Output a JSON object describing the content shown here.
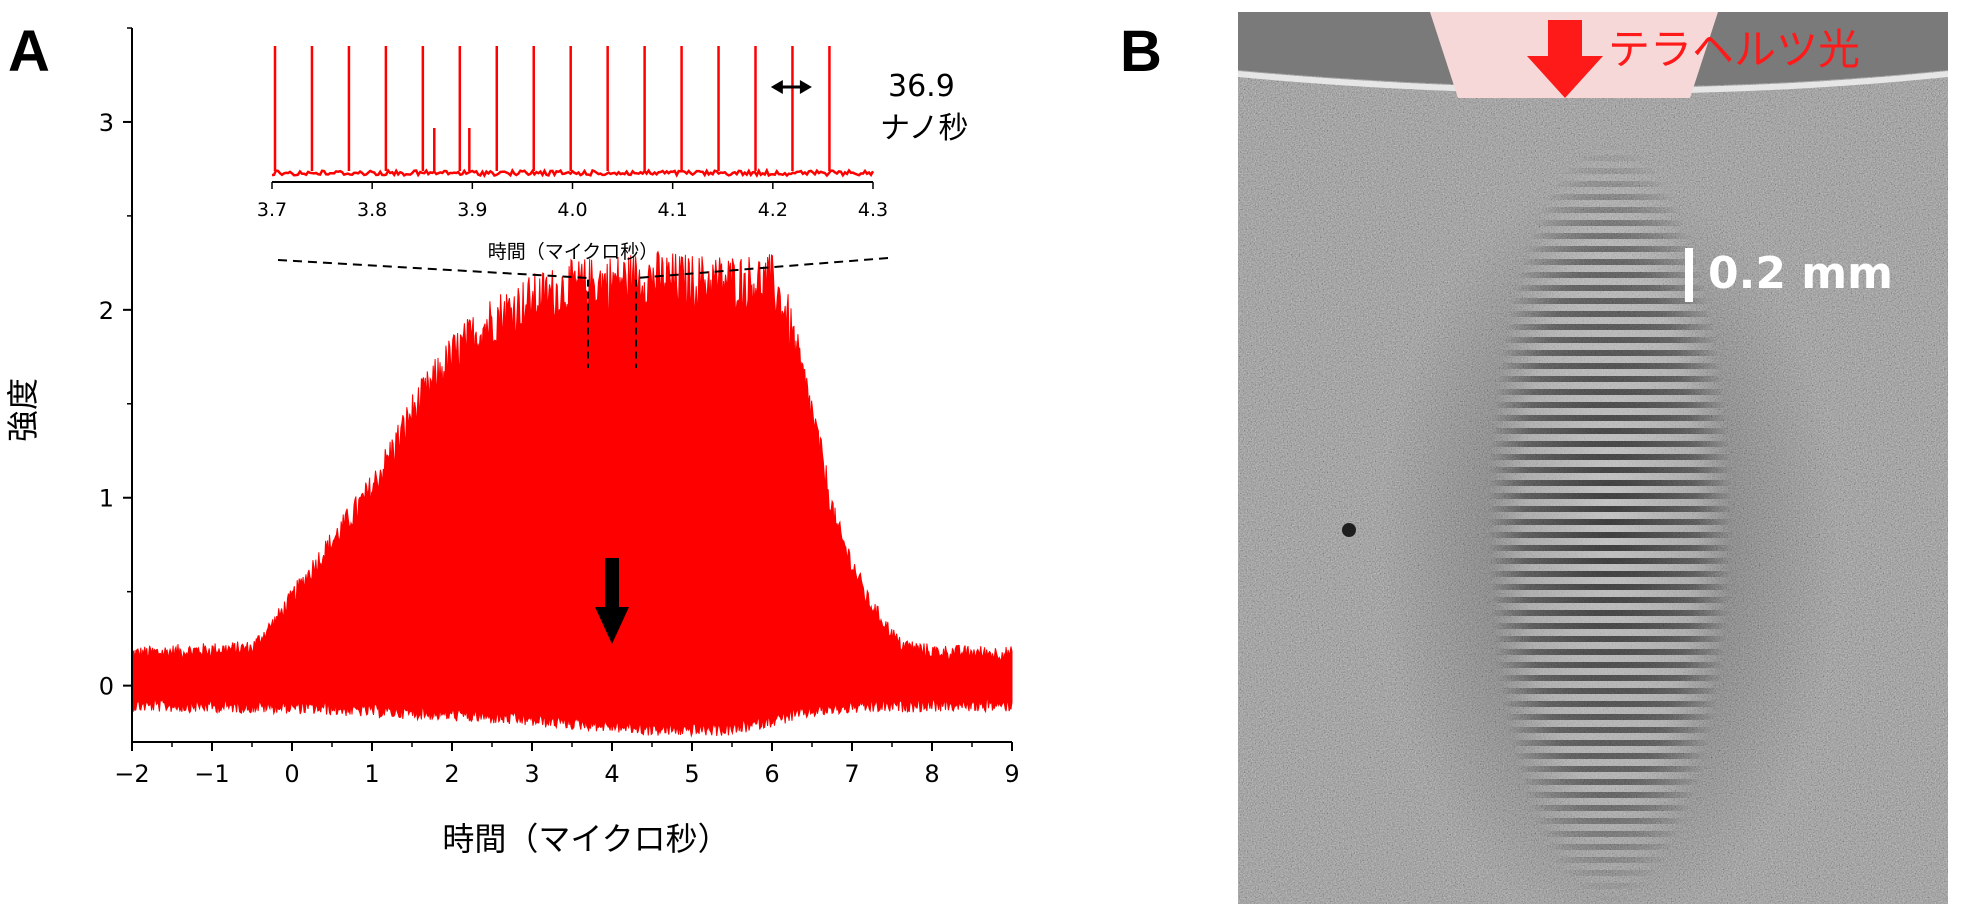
{
  "panelA": {
    "letter": "A",
    "chart_data": {
      "type": "area",
      "xlabel": "時間（マイクロ秒）",
      "ylabel": "強度",
      "xlim": [
        -2,
        9
      ],
      "ylim": [
        -0.3,
        3.5
      ],
      "xticks": [
        "−2",
        "−1",
        "0",
        "1",
        "2",
        "3",
        "4",
        "5",
        "6",
        "7",
        "8",
        "9"
      ],
      "xtick_values": [
        -2,
        -1,
        0,
        1,
        2,
        3,
        4,
        5,
        6,
        7,
        8,
        9
      ],
      "yticks": [
        "0",
        "1",
        "2",
        "3"
      ],
      "ytick_values": [
        0,
        1,
        2,
        3
      ],
      "color": "#ff0000",
      "envelope_upper": {
        "x": [
          -2,
          -0.5,
          -0.2,
          0.3,
          1.0,
          1.5,
          2.0,
          2.5,
          3.0,
          3.5,
          4.0,
          4.5,
          5.0,
          5.5,
          6.0,
          6.2,
          6.5,
          6.8,
          7.2,
          7.6,
          8.0,
          9.0
        ],
        "y": [
          0.17,
          0.2,
          0.35,
          0.65,
          1.05,
          1.45,
          1.75,
          1.95,
          2.05,
          2.12,
          2.15,
          2.17,
          2.15,
          2.15,
          2.15,
          1.95,
          1.45,
          0.85,
          0.45,
          0.22,
          0.18,
          0.17
        ]
      },
      "envelope_lower": {
        "x": [
          -2,
          0.0,
          1.0,
          2.0,
          3.0,
          4.0,
          4.5,
          5.0,
          5.5,
          6.0,
          6.5,
          7.0,
          8.0,
          9.0
        ],
        "y": [
          -0.07,
          -0.08,
          -0.1,
          -0.12,
          -0.15,
          -0.18,
          -0.2,
          -0.2,
          -0.2,
          -0.15,
          -0.1,
          -0.08,
          -0.07,
          -0.07
        ]
      },
      "marker_arrow_x": 4.0,
      "zoom_bracket_x": [
        3.7,
        4.3
      ],
      "inset": {
        "type": "line",
        "xlabel": "時間（マイクロ秒）",
        "xlim": [
          3.7,
          4.3
        ],
        "xticks": [
          "3.7",
          "3.8",
          "3.9",
          "4.0",
          "4.1",
          "4.2",
          "4.3"
        ],
        "xtick_values": [
          3.7,
          3.8,
          3.9,
          4.0,
          4.1,
          4.2,
          4.3
        ],
        "pulse_period_us": 0.0369,
        "pulse_start_us": 3.703,
        "annotation_value": "36.9",
        "annotation_unit": "ナノ秒"
      }
    }
  },
  "panelB": {
    "letter": "B",
    "label": "テラヘルツ光",
    "scalebar": "0.2 mm",
    "colors": {
      "arrow": "#ff1a1a",
      "label": "#ff1a1a",
      "beam": "#f6d8d8",
      "scalebar": "#ffffff"
    }
  }
}
